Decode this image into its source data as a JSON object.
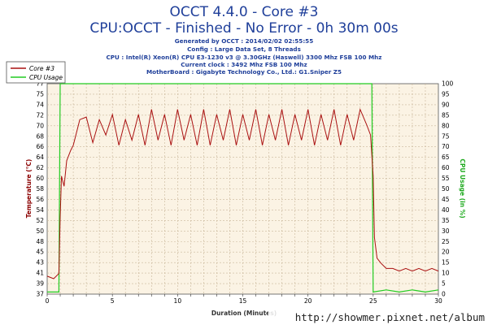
{
  "chart_data": {
    "type": "line",
    "title": "OCCT 4.4.0 - Core #3",
    "subtitle": "CPU:OCCT - Finished - No Error - 0h 30m 00s",
    "info_lines": [
      "Generated by OCCT : 2014/02/02 02:55:55",
      "Config : Large Data Set, 8 Threads",
      "CPU : Intel(R) Xeon(R) CPU E3-1230 v3 @ 3.30GHz (Haswell) 3300 Mhz FSB 100 Mhz",
      "Current clock : 3492 Mhz FSB 100 Mhz",
      "MotherBoard : Gigabyte Technology Co., Ltd.: G1.Sniper Z5"
    ],
    "xlabel": "Duration (Minutes)",
    "ylabel_left": "Temperature (°C)",
    "ylabel_right": "CPU Usage (in %)",
    "xlim": [
      0,
      30
    ],
    "ylim_left": [
      37,
      78
    ],
    "ylim_right": [
      0,
      100
    ],
    "x_ticks": [
      "0",
      "1",
      "2",
      "3",
      "4",
      "5",
      "6",
      "7",
      "8",
      "9",
      "10",
      "11",
      "12",
      "13",
      "14",
      "15",
      "16",
      "17",
      "18",
      "19",
      "20",
      "21",
      "22",
      "23",
      "24",
      "25",
      "26",
      "27",
      "28",
      "29",
      "30"
    ],
    "y_ticks_left": [
      "37",
      "39",
      "41",
      "43",
      "45",
      "48",
      "50",
      "52",
      "54",
      "56",
      "58",
      "60",
      "62",
      "64",
      "66",
      "68",
      "70",
      "72",
      "74",
      "75",
      "77"
    ],
    "y_ticks_right": [
      "0",
      "5",
      "10",
      "15",
      "20",
      "25",
      "30",
      "35",
      "40",
      "45",
      "50",
      "55",
      "60",
      "65",
      "70",
      "75",
      "80",
      "85",
      "90",
      "95",
      "100"
    ],
    "grid": true,
    "legend_position": "top-left",
    "series": [
      {
        "name": "Core #3",
        "axis": "left",
        "color": "#aa1111",
        "x": [
          0,
          0.5,
          0.9,
          1.0,
          1.1,
          1.3,
          1.5,
          1.8,
          2.0,
          2.5,
          3.0,
          3.5,
          4.0,
          4.5,
          5.0,
          5.5,
          6.0,
          6.5,
          7.0,
          7.5,
          8.0,
          8.5,
          9.0,
          9.5,
          10.0,
          10.5,
          11.0,
          11.5,
          12.0,
          12.5,
          13.0,
          13.5,
          14.0,
          14.5,
          15.0,
          15.5,
          16.0,
          16.5,
          17.0,
          17.5,
          18.0,
          18.5,
          19.0,
          19.5,
          20.0,
          20.5,
          21.0,
          21.5,
          22.0,
          22.5,
          23.0,
          23.5,
          24.0,
          24.5,
          24.8,
          25.0,
          25.1,
          25.3,
          25.6,
          26.0,
          26.5,
          27.0,
          27.5,
          28.0,
          28.5,
          29.0,
          29.5,
          30.0
        ],
        "values": [
          40.5,
          40.0,
          41.0,
          52.0,
          60.0,
          58.0,
          63.0,
          65.0,
          66.0,
          71.0,
          71.5,
          66.5,
          71.0,
          68.0,
          72.0,
          66.0,
          71.0,
          67.0,
          72.0,
          66.0,
          73.0,
          67.0,
          72.0,
          66.0,
          73.0,
          67.0,
          72.0,
          66.0,
          73.0,
          66.0,
          72.0,
          67.0,
          73.0,
          66.0,
          72.0,
          67.0,
          73.0,
          66.0,
          72.0,
          67.0,
          73.0,
          66.0,
          72.0,
          67.0,
          73.0,
          66.0,
          72.0,
          67.0,
          73.0,
          66.0,
          72.0,
          67.0,
          73.0,
          70.0,
          68.0,
          60.0,
          48.0,
          44.0,
          43.0,
          42.0,
          42.0,
          41.5,
          42.0,
          41.5,
          42.0,
          41.5,
          42.0,
          41.5
        ]
      },
      {
        "name": "CPU Usage",
        "axis": "right",
        "color": "#22cc22",
        "x": [
          0,
          0.9,
          1.0,
          24.9,
          25.0,
          26.0,
          27.0,
          28.0,
          29.0,
          30.0
        ],
        "values": [
          1,
          1,
          100,
          100,
          1,
          2,
          1,
          2,
          1,
          2
        ]
      }
    ]
  },
  "watermark": "http://showmer.pixnet.net/album"
}
